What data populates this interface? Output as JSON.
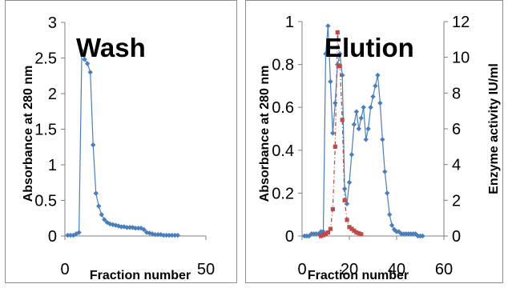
{
  "chart_data": [
    {
      "type": "line",
      "title": "Wash",
      "xlabel": "Fraction number",
      "ylabel": "Absorbance at 280 nm",
      "xlim": [
        0,
        50
      ],
      "ylim": [
        0,
        3
      ],
      "x_ticks": [
        "0",
        "50"
      ],
      "y_ticks": [
        "0",
        "0.5",
        "1",
        "1.5",
        "2",
        "2.5",
        "3"
      ],
      "colors": {
        "absorbance": "#4a7ebb"
      },
      "series": [
        {
          "x": [
            1,
            2,
            3,
            4,
            5,
            6,
            7,
            8,
            9,
            10,
            11,
            12,
            13,
            14,
            15,
            16,
            17,
            18,
            19,
            20,
            21,
            22,
            23,
            24,
            25,
            26,
            27,
            28,
            29,
            30,
            31,
            32,
            33,
            34,
            35,
            36,
            37,
            38,
            39,
            40
          ],
          "y": [
            0.01,
            0.01,
            0.01,
            0.03,
            0.05,
            2.6,
            2.48,
            2.42,
            2.3,
            1.28,
            0.6,
            0.42,
            0.3,
            0.23,
            0.19,
            0.17,
            0.16,
            0.15,
            0.14,
            0.13,
            0.13,
            0.12,
            0.12,
            0.12,
            0.11,
            0.11,
            0.11,
            0.09,
            0.05,
            0.04,
            0.03,
            0.02,
            0.02,
            0.02,
            0.01,
            0.01,
            0.01,
            0.01,
            0.01,
            0.01
          ]
        }
      ]
    },
    {
      "type": "line",
      "title": "Elution",
      "xlabel": "Fraction number",
      "ylabel": "Absorbance at 280 nm",
      "y2label": "Enzyme activity IU/ml",
      "xlim": [
        0,
        60
      ],
      "ylim": [
        0,
        1
      ],
      "y2lim": [
        0,
        12
      ],
      "x_ticks": [
        "0",
        "20",
        "40",
        "60"
      ],
      "y_ticks": [
        "0",
        "0.2",
        "0.4",
        "0.6",
        "0.8",
        "1"
      ],
      "y2_ticks": [
        "0",
        "2",
        "4",
        "6",
        "8",
        "10",
        "12"
      ],
      "colors": {
        "absorbance": "#4a7ebb",
        "activity": "#be4b48"
      },
      "series": [
        {
          "axis": "left",
          "x": [
            1,
            2,
            3,
            4,
            5,
            6,
            7,
            8,
            9,
            10,
            11,
            12,
            13,
            14,
            15,
            16,
            17,
            18,
            19,
            20,
            21,
            22,
            23,
            24,
            25,
            26,
            27,
            28,
            29,
            30,
            31,
            32,
            33,
            34,
            35,
            36,
            37,
            38,
            39,
            40,
            41,
            42,
            43,
            44,
            45,
            46,
            47,
            48,
            49,
            50,
            51
          ],
          "y": [
            0.0,
            0.0,
            0.0,
            0.01,
            0.01,
            0.01,
            0.01,
            0.02,
            0.02,
            0.85,
            0.98,
            0.72,
            0.48,
            0.62,
            0.8,
            0.85,
            0.75,
            0.22,
            0.15,
            0.25,
            0.38,
            0.52,
            0.58,
            0.5,
            0.55,
            0.6,
            0.45,
            0.5,
            0.6,
            0.65,
            0.7,
            0.75,
            0.62,
            0.45,
            0.3,
            0.2,
            0.1,
            0.05,
            0.03,
            0.02,
            0.02,
            0.01,
            0.01,
            0.01,
            0.01,
            0.01,
            0.01,
            0.01,
            0.0,
            0.0,
            0.0
          ]
        },
        {
          "axis": "right",
          "x": [
            8,
            9,
            10,
            11,
            12,
            13,
            14,
            15,
            16,
            17,
            18,
            19,
            20,
            21,
            22,
            23,
            24,
            25
          ],
          "y": [
            0.0,
            0.05,
            0.1,
            0.2,
            0.4,
            1.5,
            5.0,
            11.4,
            9.5,
            6.5,
            2.0,
            0.9,
            0.5,
            0.4,
            0.3,
            0.2,
            0.15,
            0.1
          ]
        }
      ]
    }
  ]
}
